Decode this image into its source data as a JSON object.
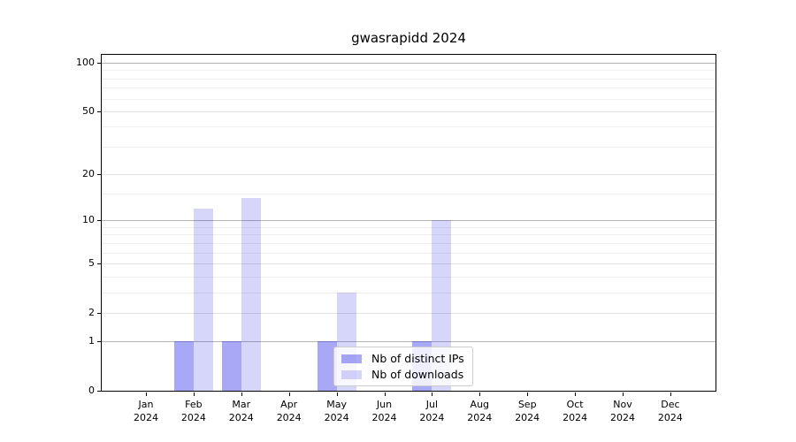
{
  "chart_data": {
    "type": "bar",
    "title": "gwasrapidd 2024",
    "categories": [
      {
        "month": "Jan",
        "year": "2024"
      },
      {
        "month": "Feb",
        "year": "2024"
      },
      {
        "month": "Mar",
        "year": "2024"
      },
      {
        "month": "Apr",
        "year": "2024"
      },
      {
        "month": "May",
        "year": "2024"
      },
      {
        "month": "Jun",
        "year": "2024"
      },
      {
        "month": "Jul",
        "year": "2024"
      },
      {
        "month": "Aug",
        "year": "2024"
      },
      {
        "month": "Sep",
        "year": "2024"
      },
      {
        "month": "Oct",
        "year": "2024"
      },
      {
        "month": "Nov",
        "year": "2024"
      },
      {
        "month": "Dec",
        "year": "2024"
      }
    ],
    "series": [
      {
        "name": "Nb of distinct IPs",
        "color": "rgba(0,0,232,0.34)",
        "color_on_white": "#a8a8f7",
        "values": [
          0,
          1,
          1,
          0,
          1,
          0,
          1,
          0,
          0,
          0,
          0,
          0
        ]
      },
      {
        "name": "Nb of downloads",
        "color": "rgba(0,0,232,0.16)",
        "color_on_white": "#d9d9f8",
        "values": [
          0,
          12,
          14,
          0,
          3,
          0,
          10,
          0,
          0,
          0,
          0,
          0
        ]
      }
    ],
    "y_axis": {
      "scale": "log1p",
      "tick_values": [
        100,
        50,
        20,
        10,
        5,
        2,
        1,
        0
      ],
      "tick_labels": [
        "100",
        "50",
        "20",
        "10",
        "5",
        "2",
        "1",
        "0"
      ],
      "decade_ticks": [
        1,
        10,
        100
      ],
      "minor_tick_values": [
        3,
        4,
        6,
        7,
        8,
        9,
        15,
        30,
        40,
        60,
        70,
        80,
        90
      ],
      "range_max": 112,
      "grid": true
    },
    "legend": {
      "position": "lower center",
      "entries": [
        "Nb of distinct IPs",
        "Nb of downloads"
      ]
    },
    "colors": {
      "grid_decade": "#b5b5b5",
      "grid_major": "#e2e2e2",
      "grid_minor": "#efefef",
      "axis": "#000000",
      "background": "#ffffff"
    }
  }
}
